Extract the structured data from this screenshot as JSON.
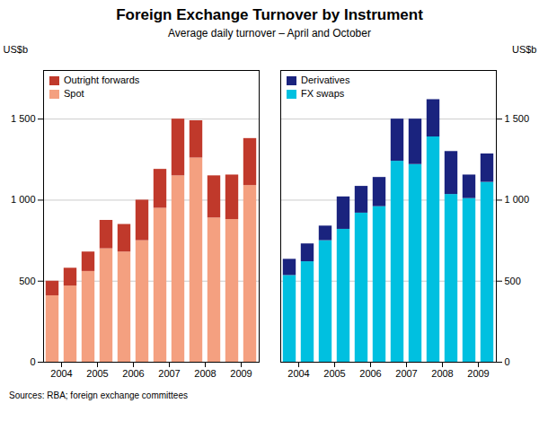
{
  "chart_data": [
    {
      "type": "bar",
      "title": "Foreign Exchange Turnover by Instrument",
      "subtitle": "Average daily turnover – April and October",
      "source": "Sources: RBA; foreign exchange committees",
      "ylabel": "US$b",
      "categories": [
        "2004",
        null,
        "2005",
        null,
        "2006",
        null,
        "2007",
        null,
        "2008",
        null,
        "2009",
        null
      ],
      "series": [
        {
          "name": "Spot",
          "color": "#F4A080",
          "values": [
            410,
            470,
            560,
            700,
            680,
            750,
            950,
            1150,
            1260,
            890,
            880,
            1090
          ]
        },
        {
          "name": "Outright forwards",
          "color": "#C0392B",
          "values": [
            90,
            110,
            120,
            175,
            170,
            250,
            240,
            350,
            230,
            260,
            275,
            290
          ]
        }
      ],
      "stacked": true,
      "ylim": [
        0,
        1800
      ],
      "yticks": [
        0,
        500,
        {
          "value": 1000,
          "label": "1 000"
        },
        {
          "value": 1500,
          "label": "1 500"
        }
      ],
      "grid": true,
      "legend": "upper left"
    },
    {
      "type": "bar",
      "ylabel": "US$b",
      "categories": [
        "2004",
        null,
        "2005",
        null,
        "2006",
        null,
        "2007",
        null,
        "2008",
        null,
        "2009",
        null
      ],
      "series": [
        {
          "name": "FX swaps",
          "color": "#00C0E0",
          "values": [
            535,
            620,
            750,
            820,
            920,
            960,
            1240,
            1220,
            1390,
            1035,
            1010,
            1110
          ]
        },
        {
          "name": "Derivatives",
          "color": "#1A237E",
          "values": [
            100,
            110,
            90,
            200,
            165,
            180,
            260,
            280,
            230,
            265,
            145,
            175
          ]
        }
      ],
      "stacked": true,
      "ylim": [
        0,
        1800
      ],
      "yticks": [
        0,
        500,
        {
          "value": 1000,
          "label": "1 000"
        },
        {
          "value": 1500,
          "label": "1 500"
        }
      ],
      "grid": true,
      "legend": "upper left"
    }
  ]
}
